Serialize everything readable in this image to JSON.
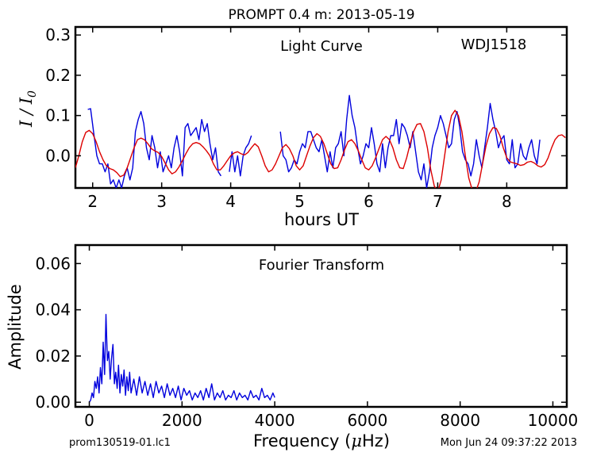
{
  "figure": {
    "title": "PROMPT 0.4 m:  2013-05-19",
    "footer_left": "prom130519-01.lc1",
    "footer_right": "Mon Jun 24 09:37:22 2013"
  },
  "chart_data": [
    {
      "type": "line",
      "panel": "light-curve",
      "annotation": "Light Curve",
      "object_label": "WDJ1518",
      "xlabel": "hours UT",
      "ylabel": "I / I",
      "ylabel_sub": "0",
      "xlim": [
        1.75,
        8.87
      ],
      "ylim": [
        -0.08,
        0.32
      ],
      "xticks": [
        2,
        3,
        4,
        5,
        6,
        7,
        8
      ],
      "xtick_labels": [
        "2",
        "3",
        "4",
        "5",
        "6",
        "7",
        "8"
      ],
      "yticks": [
        0.0,
        0.1,
        0.2,
        0.3
      ],
      "ytick_labels": [
        "0.0",
        "0.1",
        "0.2",
        "0.3"
      ],
      "grid": false,
      "series": [
        {
          "color": "#0000dd",
          "segments": [
            {
              "x": [
                1.93,
                1.97,
                2.02,
                2.06,
                2.1,
                2.14,
                2.18,
                2.22,
                2.26,
                2.3,
                2.34,
                2.38,
                2.42,
                2.46,
                2.5,
                2.54,
                2.58,
                2.62,
                2.66,
                2.7,
                2.74,
                2.78,
                2.82,
                2.86,
                2.9,
                2.94,
                2.98,
                3.02,
                3.06,
                3.1,
                3.14,
                3.18,
                3.22,
                3.26,
                3.3,
                3.34,
                3.38,
                3.42,
                3.46,
                3.5,
                3.54,
                3.58,
                3.62,
                3.66,
                3.7,
                3.74,
                3.78,
                3.82,
                3.86
              ],
              "y": [
                0.115,
                0.117,
                0.05,
                0.0,
                -0.02,
                -0.02,
                -0.04,
                -0.02,
                -0.07,
                -0.06,
                -0.08,
                -0.06,
                -0.08,
                -0.05,
                -0.03,
                -0.06,
                -0.03,
                0.06,
                0.09,
                0.11,
                0.08,
                0.02,
                -0.01,
                0.05,
                0.02,
                -0.03,
                0.01,
                -0.04,
                -0.02,
                0.0,
                -0.03,
                0.02,
                0.05,
                0.01,
                -0.05,
                0.07,
                0.08,
                0.05,
                0.06,
                0.07,
                0.04,
                0.09,
                0.06,
                0.08,
                0.03,
                -0.01,
                0.02,
                -0.04,
                -0.05
              ]
            },
            {
              "x": [
                3.98,
                4.02,
                4.06,
                4.1,
                4.14,
                4.18,
                4.22,
                4.26,
                4.3
              ],
              "y": [
                -0.04,
                0.01,
                -0.04,
                0.0,
                -0.05,
                0.0,
                0.02,
                0.03,
                0.05
              ]
            },
            {
              "x": [
                4.72,
                4.76,
                4.8,
                4.84,
                4.88,
                4.92,
                4.96,
                5.0,
                5.04,
                5.08,
                5.12,
                5.16,
                5.2,
                5.24,
                5.28,
                5.32,
                5.36,
                5.4,
                5.44,
                5.48,
                5.52,
                5.56,
                5.6,
                5.64,
                5.68,
                5.72,
                5.76,
                5.8,
                5.84,
                5.88,
                5.92,
                5.96,
                6.0,
                6.04,
                6.08,
                6.12,
                6.16,
                6.2,
                6.24,
                6.28,
                6.32,
                6.36,
                6.4,
                6.44,
                6.48,
                6.52,
                6.56,
                6.6,
                6.64,
                6.68,
                6.72,
                6.76,
                6.8,
                6.84,
                6.88,
                6.92,
                6.96,
                7.0,
                7.04,
                7.08,
                7.12,
                7.16,
                7.2,
                7.24,
                7.28,
                7.32,
                7.36,
                7.4,
                7.44,
                7.48,
                7.52,
                7.56,
                7.6,
                7.64,
                7.68,
                7.72,
                7.76,
                7.8,
                7.84,
                7.88,
                7.92,
                7.96,
                8.0,
                8.04,
                8.08,
                8.12,
                8.16,
                8.2,
                8.24,
                8.28,
                8.32,
                8.36,
                8.4,
                8.44,
                8.48
              ],
              "y": [
                0.06,
                0.0,
                -0.01,
                -0.04,
                -0.03,
                -0.01,
                -0.02,
                0.01,
                0.03,
                0.02,
                0.06,
                0.06,
                0.04,
                0.02,
                0.01,
                0.04,
                0.0,
                -0.04,
                0.01,
                -0.03,
                0.02,
                0.03,
                0.06,
                0.0,
                0.09,
                0.15,
                0.1,
                0.07,
                0.02,
                -0.02,
                0.0,
                0.03,
                0.02,
                0.07,
                0.03,
                -0.02,
                -0.04,
                0.03,
                -0.03,
                0.02,
                0.05,
                0.05,
                0.09,
                0.03,
                0.08,
                0.07,
                0.05,
                0.02,
                0.06,
                0.01,
                -0.04,
                -0.06,
                -0.02,
                -0.08,
                -0.04,
                0.02,
                0.05,
                0.07,
                0.1,
                0.08,
                0.05,
                0.02,
                0.03,
                0.09,
                0.11,
                0.07,
                0.01,
                -0.01,
                -0.02,
                -0.05,
                -0.02,
                0.04,
                0.0,
                -0.03,
                0.02,
                0.07,
                0.13,
                0.09,
                0.06,
                0.02,
                0.04,
                0.05,
                -0.01,
                -0.02,
                0.04,
                -0.03,
                -0.02,
                0.03,
                0.0,
                -0.01,
                0.02,
                0.04,
                0.0,
                -0.02,
                0.04
              ]
            }
          ]
        },
        {
          "color": "#dd0000",
          "segments": [
            {
              "x": [
                1.75,
                1.8,
                1.85,
                1.9,
                1.95,
                2.0,
                2.05,
                2.1,
                2.15,
                2.2,
                2.25,
                2.3,
                2.35,
                2.4,
                2.45,
                2.5,
                2.55,
                2.6,
                2.65,
                2.7,
                2.75,
                2.8,
                2.85,
                2.9,
                2.95,
                3.0,
                3.05,
                3.1,
                3.15,
                3.2,
                3.25,
                3.3,
                3.35,
                3.4,
                3.45,
                3.5,
                3.55,
                3.6,
                3.65,
                3.7,
                3.75,
                3.8,
                3.85,
                3.9,
                3.95,
                4.0,
                4.05,
                4.1,
                4.15,
                4.2,
                4.25,
                4.3,
                4.35,
                4.4,
                4.45,
                4.5,
                4.55,
                4.6,
                4.65,
                4.7,
                4.75,
                4.8,
                4.85,
                4.9,
                4.95,
                5.0,
                5.05,
                5.1,
                5.15,
                5.2,
                5.25,
                5.3,
                5.35,
                5.4,
                5.45,
                5.5,
                5.55,
                5.6,
                5.65,
                5.7,
                5.75,
                5.8,
                5.85,
                5.9,
                5.95,
                6.0,
                6.05,
                6.1,
                6.15,
                6.2,
                6.25,
                6.3,
                6.35,
                6.4,
                6.45,
                6.5,
                6.55,
                6.6,
                6.65,
                6.7,
                6.75,
                6.8,
                6.85,
                6.9,
                6.95,
                7.0,
                7.05,
                7.1,
                7.15,
                7.2,
                7.25,
                7.3,
                7.35,
                7.4,
                7.45,
                7.5,
                7.55,
                7.6,
                7.65,
                7.7,
                7.75,
                7.8,
                7.85,
                7.9,
                7.95,
                8.0,
                8.05,
                8.1,
                8.15,
                8.2,
                8.25,
                8.3,
                8.35,
                8.4,
                8.45,
                8.5,
                8.55,
                8.6,
                8.65,
                8.7,
                8.75,
                8.8,
                8.85
              ],
              "y": [
                -0.03,
                0.0,
                0.035,
                0.058,
                0.063,
                0.055,
                0.035,
                0.01,
                -0.01,
                -0.025,
                -0.032,
                -0.035,
                -0.042,
                -0.052,
                -0.048,
                -0.03,
                -0.005,
                0.02,
                0.04,
                0.044,
                0.04,
                0.03,
                0.018,
                0.012,
                0.008,
                -0.002,
                -0.018,
                -0.035,
                -0.045,
                -0.04,
                -0.028,
                -0.012,
                0.005,
                0.02,
                0.03,
                0.033,
                0.03,
                0.022,
                0.012,
                0.0,
                -0.02,
                -0.035,
                -0.035,
                -0.025,
                -0.012,
                0.0,
                0.007,
                0.01,
                0.005,
                0.002,
                0.008,
                0.02,
                0.03,
                0.022,
                0.0,
                -0.025,
                -0.04,
                -0.035,
                -0.02,
                0.0,
                0.02,
                0.028,
                0.018,
                0.0,
                -0.025,
                -0.035,
                -0.025,
                0.0,
                0.025,
                0.045,
                0.055,
                0.048,
                0.03,
                0.005,
                -0.02,
                -0.032,
                -0.03,
                -0.01,
                0.015,
                0.035,
                0.04,
                0.03,
                0.012,
                -0.01,
                -0.03,
                -0.035,
                -0.025,
                -0.005,
                0.018,
                0.04,
                0.048,
                0.04,
                0.02,
                -0.01,
                -0.03,
                -0.032,
                -0.005,
                0.03,
                0.06,
                0.078,
                0.08,
                0.06,
                0.02,
                -0.035,
                -0.075,
                -0.09,
                -0.06,
                0.0,
                0.06,
                0.1,
                0.113,
                0.1,
                0.06,
                0.0,
                -0.055,
                -0.085,
                -0.09,
                -0.065,
                -0.02,
                0.025,
                0.055,
                0.07,
                0.068,
                0.05,
                0.02,
                -0.005,
                -0.015,
                -0.018,
                -0.02,
                -0.024,
                -0.022,
                -0.016,
                -0.014,
                -0.018,
                -0.025,
                -0.028,
                -0.022,
                -0.005,
                0.02,
                0.04,
                0.05,
                0.052,
                0.045
              ]
            }
          ]
        }
      ]
    },
    {
      "type": "line",
      "panel": "fourier-transform",
      "annotation": "Fourier Transform",
      "xlabel": "Frequency (",
      "xlabel_unit": "μ",
      "xlabel_tail": "Hz)",
      "ylabel": "Amplitude",
      "xlim": [
        -300,
        10300
      ],
      "ylim": [
        -0.002,
        0.068
      ],
      "xticks": [
        0,
        2000,
        4000,
        6000,
        8000,
        10000
      ],
      "xtick_labels": [
        "0",
        "2000",
        "4000",
        "6000",
        "8000",
        "10000"
      ],
      "yticks": [
        0.0,
        0.02,
        0.04,
        0.06
      ],
      "ytick_labels": [
        "0.00",
        "0.02",
        "0.04",
        "0.06"
      ],
      "grid": false,
      "series": [
        {
          "color": "#0000dd",
          "x": [
            0,
            30,
            60,
            90,
            120,
            150,
            180,
            210,
            240,
            270,
            300,
            330,
            360,
            390,
            420,
            450,
            480,
            510,
            540,
            570,
            600,
            630,
            660,
            690,
            720,
            750,
            780,
            810,
            840,
            870,
            900,
            960,
            1020,
            1080,
            1140,
            1200,
            1260,
            1320,
            1380,
            1440,
            1500,
            1560,
            1620,
            1680,
            1740,
            1800,
            1860,
            1920,
            1980,
            2040,
            2100,
            2160,
            2220,
            2280,
            2340,
            2400,
            2460,
            2520,
            2580,
            2640,
            2700,
            2760,
            2820,
            2880,
            2940,
            3000,
            3060,
            3120,
            3180,
            3240,
            3300,
            3360,
            3420,
            3480,
            3540,
            3600,
            3660,
            3720,
            3780,
            3840,
            3900,
            3960,
            4000
          ],
          "y": [
            0.0,
            0.001,
            0.004,
            0.002,
            0.009,
            0.006,
            0.011,
            0.004,
            0.015,
            0.008,
            0.026,
            0.012,
            0.038,
            0.018,
            0.022,
            0.01,
            0.019,
            0.025,
            0.008,
            0.013,
            0.006,
            0.016,
            0.004,
            0.012,
            0.007,
            0.014,
            0.003,
            0.011,
            0.005,
            0.013,
            0.004,
            0.01,
            0.003,
            0.011,
            0.004,
            0.009,
            0.003,
            0.008,
            0.002,
            0.009,
            0.004,
            0.007,
            0.002,
            0.008,
            0.003,
            0.006,
            0.002,
            0.007,
            0.001,
            0.006,
            0.003,
            0.005,
            0.001,
            0.004,
            0.002,
            0.005,
            0.001,
            0.006,
            0.002,
            0.008,
            0.001,
            0.004,
            0.002,
            0.005,
            0.001,
            0.003,
            0.002,
            0.005,
            0.001,
            0.004,
            0.002,
            0.003,
            0.001,
            0.005,
            0.002,
            0.003,
            0.001,
            0.006,
            0.002,
            0.003,
            0.001,
            0.004,
            0.002
          ]
        }
      ]
    }
  ]
}
